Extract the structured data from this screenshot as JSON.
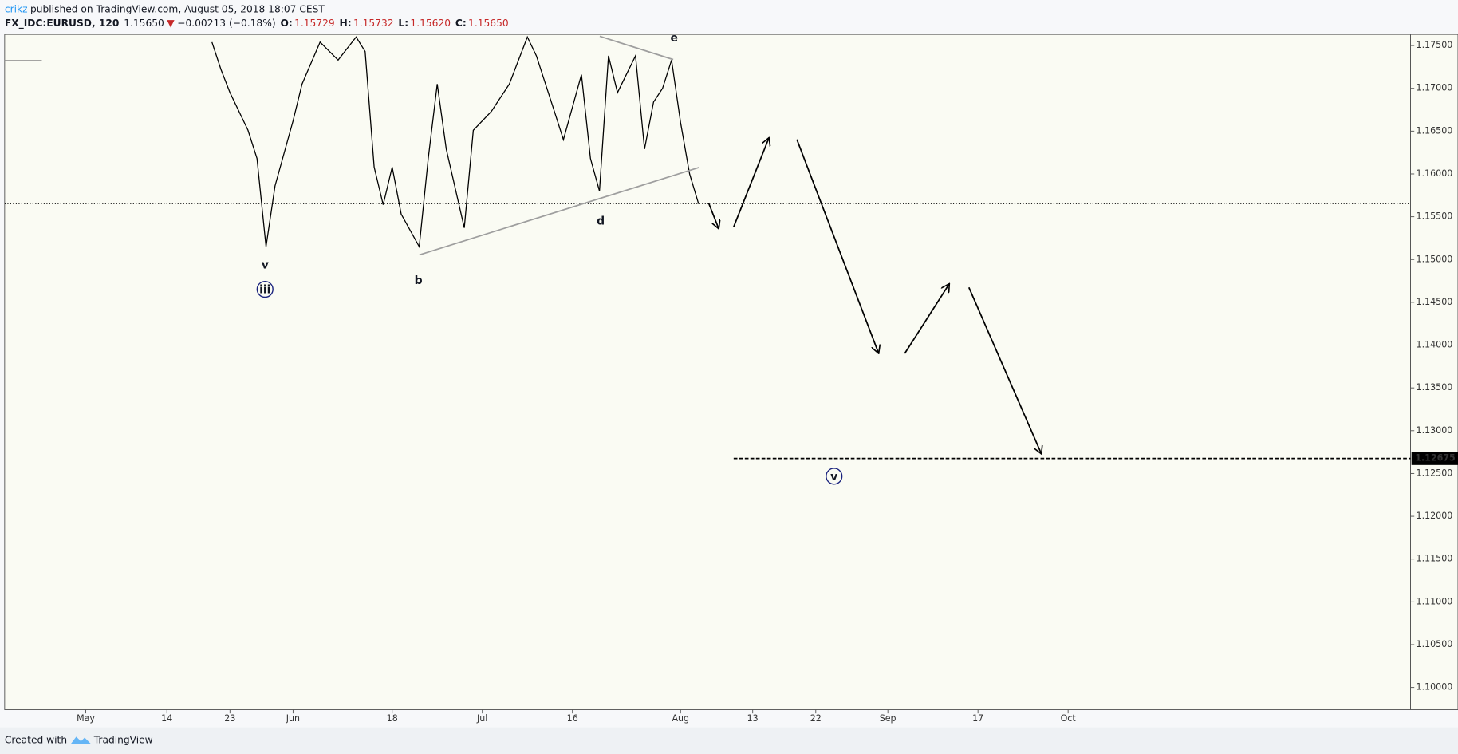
{
  "header": {
    "author": "crikz",
    "published": "published on TradingView.com, August 05, 2018 18:07 CEST",
    "symbol": "FX_IDC:EURUSD, 120",
    "last": "1.15650",
    "direction": "▼",
    "change": "−0.00213 (−0.18%)",
    "open_label": "O:",
    "open": "1.15729",
    "high_label": "H:",
    "high": "1.15732",
    "low_label": "L:",
    "low": "1.15620",
    "close_label": "C:",
    "close": "1.15650"
  },
  "chart_data": {
    "type": "line",
    "color": "#000000",
    "grid": false,
    "x": [
      "2018-05-21",
      "2018-05-22",
      "2018-05-23",
      "2018-05-25",
      "2018-05-28",
      "2018-05-29",
      "2018-05-30",
      "2018-06-01",
      "2018-06-04",
      "2018-06-06",
      "2018-06-08",
      "2018-06-12",
      "2018-06-13",
      "2018-06-14",
      "2018-06-15",
      "2018-06-18",
      "2018-06-19",
      "2018-06-21",
      "2018-06-22",
      "2018-06-25",
      "2018-06-26",
      "2018-06-28",
      "2018-06-29",
      "2018-07-03",
      "2018-07-05",
      "2018-07-09",
      "2018-07-10",
      "2018-07-12",
      "2018-07-13",
      "2018-07-17",
      "2018-07-18",
      "2018-07-19",
      "2018-07-20",
      "2018-07-23",
      "2018-07-25",
      "2018-07-26",
      "2018-07-27",
      "2018-07-30",
      "2018-07-31",
      "2018-08-01",
      "2018-08-02",
      "2018-08-03"
    ],
    "values": [
      1.1754,
      1.1722,
      1.1695,
      1.1651,
      1.1618,
      1.1515,
      1.1586,
      1.1662,
      1.1705,
      1.1754,
      1.1733,
      1.176,
      1.1743,
      1.1608,
      1.1564,
      1.1608,
      1.1553,
      1.1515,
      1.1618,
      1.1705,
      1.1629,
      1.1537,
      1.1651,
      1.1673,
      1.1705,
      1.176,
      1.1738,
      1.1673,
      1.164,
      1.1716,
      1.1618,
      1.158,
      1.1738,
      1.1695,
      1.1738,
      1.1629,
      1.1684,
      1.17,
      1.1733,
      1.166,
      1.16,
      1.1565
    ],
    "xlim": [
      "2018-04-18",
      "2018-11-22"
    ],
    "xticks": [
      {
        "value": "2018-05-01",
        "label": "May"
      },
      {
        "value": "2018-05-14",
        "label": "14"
      },
      {
        "value": "2018-05-23",
        "label": "23"
      },
      {
        "value": "2018-06-01",
        "label": "Jun"
      },
      {
        "value": "2018-06-18",
        "label": "18"
      },
      {
        "value": "2018-07-02",
        "label": "Jul"
      },
      {
        "value": "2018-07-16",
        "label": "16"
      },
      {
        "value": "2018-08-01",
        "label": "Aug"
      },
      {
        "value": "2018-08-13",
        "label": "13"
      },
      {
        "value": "2018-08-22",
        "label": "22"
      },
      {
        "value": "2018-09-03",
        "label": "Sep"
      },
      {
        "value": "2018-09-17",
        "label": "17"
      },
      {
        "value": "2018-10-01",
        "label": "Oct"
      }
    ],
    "ylim": [
      1.0974,
      1.1763
    ],
    "yticks": [
      {
        "value": 1.175,
        "label": "1.17500"
      },
      {
        "value": 1.17,
        "label": "1.17000"
      },
      {
        "value": 1.165,
        "label": "1.16500"
      },
      {
        "value": 1.16,
        "label": "1.16000"
      },
      {
        "value": 1.155,
        "label": "1.15500"
      },
      {
        "value": 1.15,
        "label": "1.15000"
      },
      {
        "value": 1.145,
        "label": "1.14500"
      },
      {
        "value": 1.14,
        "label": "1.14000"
      },
      {
        "value": 1.135,
        "label": "1.13500"
      },
      {
        "value": 1.13,
        "label": "1.13000"
      },
      {
        "value": 1.125,
        "label": "1.12500"
      },
      {
        "value": 1.12,
        "label": "1.12000"
      },
      {
        "value": 1.115,
        "label": "1.11500"
      },
      {
        "value": 1.11,
        "label": "1.11000"
      },
      {
        "value": 1.105,
        "label": "1.10500"
      },
      {
        "value": 1.1,
        "label": "1.10000"
      }
    ],
    "target_level": 1.12675,
    "annotations": [
      "v",
      "iii",
      "b",
      "d",
      "e",
      "v"
    ]
  },
  "footer": {
    "created": "Created with",
    "brand": "TradingView"
  }
}
